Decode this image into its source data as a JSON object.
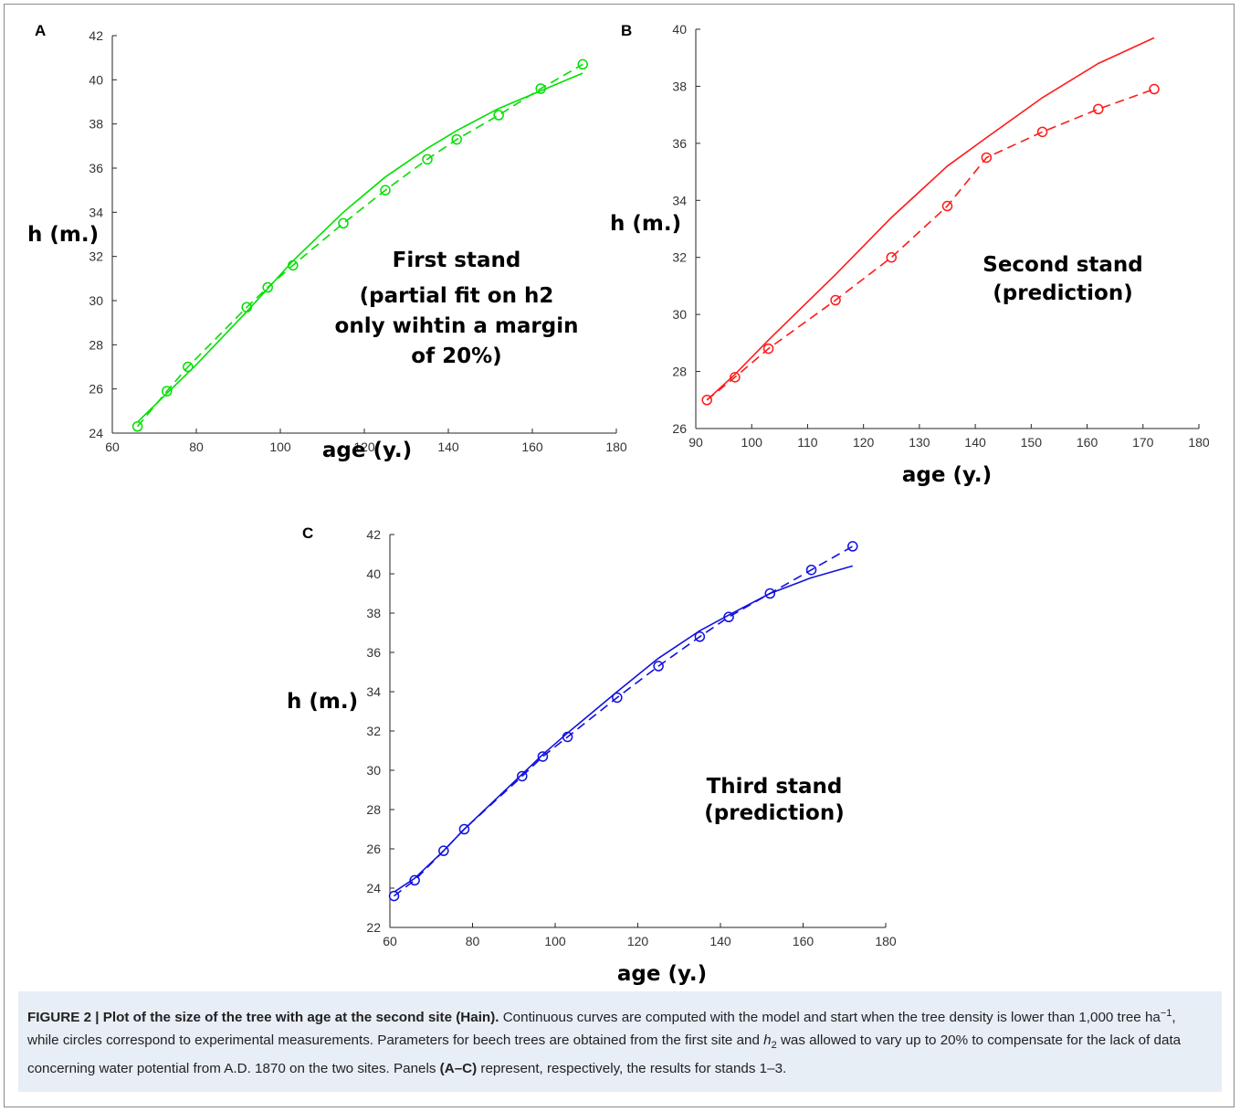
{
  "figure_caption": {
    "label": "FIGURE 2 | Plot of the size of the tree with age at the second site (Hain).",
    "text_part1": " Continuous curves are computed with the model and start when the tree density is lower than 1,000 tree ha",
    "superscript": "−1",
    "text_part2": ", while circles correspond to experimental measurements. Parameters for beech trees are obtained from the first site and ",
    "italic_var": "h",
    "subscript": "2",
    "text_part3": " was allowed to vary up to 20% to compensate for the lack of data concerning water potential from A.D. 1870 on the two sites. Panels ",
    "panels_ref": "(A–C)",
    "text_part4": " represent, respectively, the results for stands 1–3."
  },
  "chart_data": [
    {
      "panel": "A",
      "type": "line",
      "xlabel": "age (y.)",
      "ylabel": "h (m.)",
      "xlim": [
        60,
        180
      ],
      "ylim": [
        24,
        42
      ],
      "xticks": [
        60,
        80,
        100,
        120,
        140,
        160,
        180
      ],
      "yticks": [
        24,
        26,
        28,
        30,
        32,
        34,
        36,
        38,
        40,
        42
      ],
      "color": "#00e000",
      "annotation": [
        "First stand",
        "(partial fit on h2",
        "only wihtin a margin",
        "of 20%)"
      ],
      "series": [
        {
          "style": "solid",
          "x": [
            66,
            80,
            92,
            103,
            115,
            125,
            135,
            142,
            152,
            162,
            172
          ],
          "y": [
            24.5,
            27.1,
            29.5,
            31.8,
            34.0,
            35.6,
            36.9,
            37.7,
            38.7,
            39.5,
            40.3
          ]
        },
        {
          "style": "dashed-markers",
          "x": [
            66,
            73,
            78,
            92,
            97,
            103,
            115,
            125,
            135,
            142,
            152,
            162,
            172
          ],
          "y": [
            24.3,
            25.9,
            27.0,
            29.7,
            30.6,
            31.6,
            33.5,
            35.0,
            36.4,
            37.3,
            38.4,
            39.6,
            40.7
          ]
        }
      ]
    },
    {
      "panel": "B",
      "type": "line",
      "xlabel": "age (y.)",
      "ylabel": "h (m.)",
      "xlim": [
        90,
        180
      ],
      "ylim": [
        26,
        40
      ],
      "xticks": [
        90,
        100,
        110,
        120,
        130,
        140,
        150,
        160,
        170,
        180
      ],
      "yticks": [
        26,
        28,
        30,
        32,
        34,
        36,
        38,
        40
      ],
      "color": "#ff1a1a",
      "annotation": [
        "Second stand",
        "(prediction)"
      ],
      "series": [
        {
          "style": "solid",
          "x": [
            92,
            97,
            103,
            115,
            125,
            135,
            142,
            152,
            162,
            172
          ],
          "y": [
            27.0,
            27.9,
            29.1,
            31.4,
            33.4,
            35.2,
            36.2,
            37.6,
            38.8,
            39.7
          ]
        },
        {
          "style": "dashed-markers",
          "x": [
            92,
            97,
            103,
            115,
            125,
            135,
            142,
            152,
            162,
            172
          ],
          "y": [
            27.0,
            27.8,
            28.8,
            30.5,
            32.0,
            33.8,
            35.5,
            36.4,
            37.2,
            37.9
          ]
        }
      ]
    },
    {
      "panel": "C",
      "type": "line",
      "xlabel": "age (y.)",
      "ylabel": "h (m.)",
      "xlim": [
        60,
        180
      ],
      "ylim": [
        22,
        42
      ],
      "xticks": [
        60,
        80,
        100,
        120,
        140,
        160,
        180
      ],
      "yticks": [
        22,
        24,
        26,
        28,
        30,
        32,
        34,
        36,
        38,
        40,
        42
      ],
      "color": "#1010e0",
      "annotation": [
        "Third stand",
        "(prediction)"
      ],
      "series": [
        {
          "style": "solid",
          "x": [
            61,
            66,
            73,
            78,
            92,
            97,
            103,
            115,
            125,
            135,
            142,
            152,
            162,
            172
          ],
          "y": [
            23.8,
            24.5,
            25.9,
            27.0,
            29.8,
            30.8,
            31.9,
            34.0,
            35.7,
            37.1,
            37.9,
            39.0,
            39.8,
            40.4
          ]
        },
        {
          "style": "dashed-markers",
          "x": [
            61,
            66,
            73,
            78,
            92,
            97,
            103,
            115,
            125,
            135,
            142,
            152,
            162,
            172
          ],
          "y": [
            23.6,
            24.4,
            25.9,
            27.0,
            29.7,
            30.7,
            31.7,
            33.7,
            35.3,
            36.8,
            37.8,
            39.0,
            40.2,
            41.4
          ]
        }
      ]
    }
  ]
}
